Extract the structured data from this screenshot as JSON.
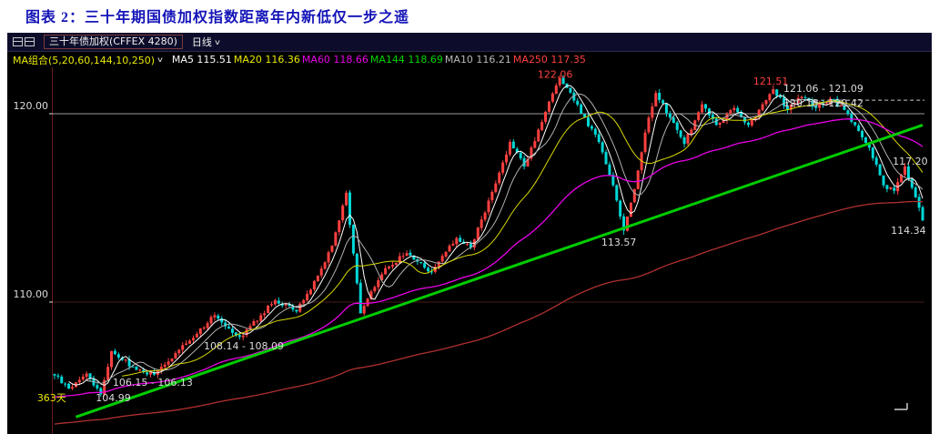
{
  "title": {
    "text": "图表 2：三十年期国债加权指数距离年内新低仅一步之遥"
  },
  "chart_header": {
    "instrument": "三十年债加权(CFFEX 4280)",
    "period": "日线",
    "caret": "∨",
    "ma_group_label": "MA组合(5,20,60,144,10,250)",
    "ma_items": [
      {
        "label": "MA5 115.51",
        "color": "#ffffff"
      },
      {
        "label": "MA20 116.36",
        "color": "#e8e800"
      },
      {
        "label": "MA60 118.66",
        "color": "#e800e8"
      },
      {
        "label": "MA144 118.69",
        "color": "#00d800"
      },
      {
        "label": "MA10 116.21",
        "color": "#b8b8b8"
      },
      {
        "label": "MA250 117.35",
        "color": "#ff4040"
      }
    ]
  },
  "chart_data": {
    "type": "candlestick",
    "title": "三十年债加权(CFFEX 4280) 日线",
    "x_span_label": "363天",
    "y_axis": {
      "range": [
        103.2,
        122.5
      ],
      "labels": [
        {
          "text": "120.00",
          "price": 120.0
        },
        {
          "text": "110.00",
          "price": 110.0
        }
      ]
    },
    "num_candles": 245,
    "anchors": [
      [
        0,
        106.1
      ],
      [
        4,
        105.4
      ],
      [
        9,
        106.2
      ],
      [
        13,
        105.1
      ],
      [
        16,
        107.4
      ],
      [
        23,
        106.4
      ],
      [
        28,
        106.15
      ],
      [
        33,
        107.0
      ],
      [
        37,
        107.8
      ],
      [
        45,
        109.3
      ],
      [
        52,
        108.15
      ],
      [
        58,
        109.3
      ],
      [
        62,
        110.1
      ],
      [
        68,
        109.5
      ],
      [
        74,
        111.4
      ],
      [
        78,
        113.0
      ],
      [
        82,
        115.8
      ],
      [
        86,
        109.4
      ],
      [
        90,
        110.8
      ],
      [
        93,
        111.8
      ],
      [
        99,
        112.6
      ],
      [
        106,
        111.6
      ],
      [
        113,
        113.4
      ],
      [
        117,
        112.9
      ],
      [
        124,
        116.3
      ],
      [
        128,
        118.5
      ],
      [
        132,
        117.2
      ],
      [
        138,
        120.1
      ],
      [
        142,
        121.9
      ],
      [
        146,
        120.7
      ],
      [
        153,
        118.5
      ],
      [
        157,
        116.2
      ],
      [
        160,
        113.8
      ],
      [
        163,
        116.0
      ],
      [
        166,
        119.0
      ],
      [
        169,
        121.1
      ],
      [
        173,
        119.8
      ],
      [
        177,
        118.4
      ],
      [
        182,
        120.5
      ],
      [
        186,
        119.4
      ],
      [
        191,
        120.3
      ],
      [
        195,
        119.4
      ],
      [
        199,
        120.5
      ],
      [
        202,
        121.3
      ],
      [
        206,
        120.2
      ],
      [
        210,
        120.9
      ],
      [
        214,
        120.3
      ],
      [
        218,
        120.8
      ],
      [
        222,
        120.2
      ],
      [
        225,
        119.4
      ],
      [
        229,
        118.2
      ],
      [
        233,
        116.2
      ],
      [
        236,
        115.9
      ],
      [
        239,
        117.2
      ],
      [
        244,
        114.34
      ]
    ],
    "forced_points": [
      {
        "idx": 13,
        "type": "low",
        "price": 104.99
      },
      {
        "idx": 142,
        "type": "high",
        "price": 122.06
      },
      {
        "idx": 160,
        "type": "low",
        "price": 113.57
      },
      {
        "idx": 202,
        "type": "high",
        "price": 121.51
      },
      {
        "idx": 244,
        "type": "close",
        "price": 114.34
      }
    ],
    "moving_averages": [
      {
        "name": "MA5",
        "window": 5,
        "type": "sma",
        "color": "#ffffff",
        "width": 1
      },
      {
        "name": "MA10",
        "window": 10,
        "type": "sma",
        "color": "#b0b0b0",
        "width": 1
      },
      {
        "name": "MA20",
        "window": 20,
        "type": "sma",
        "color": "#d8d800",
        "width": 1
      },
      {
        "name": "MA60",
        "window": 60,
        "type": "ema",
        "alpha": 0.032,
        "seed_offset": -1.2,
        "color": "#e800e8",
        "width": 1.3
      },
      {
        "name": "MA250",
        "window": 250,
        "type": "ema",
        "alpha": 0.009,
        "seed_offset": -2.6,
        "color": "#b03030",
        "width": 1.3
      }
    ],
    "trendline": {
      "from": {
        "idx": 6,
        "price": 103.9
      },
      "to": {
        "idx": 244,
        "price": 119.4
      },
      "color": "#00cc00",
      "width": 3
    },
    "gridlines": [
      {
        "price": 120.0,
        "color": "#9a9a9a",
        "width": 1
      },
      {
        "price": 110.0,
        "color": "#4a1a1a",
        "width": 1
      }
    ],
    "dashed_level": {
      "price": 120.72,
      "from_idx": 213.6,
      "color": "#cccccc",
      "dash": "4 3"
    },
    "annotations": [
      {
        "text": "122.06",
        "idx": 140.7,
        "price": 122.1,
        "color": "#ff4040"
      },
      {
        "text": "121.51",
        "idx": 201.3,
        "price": 121.74,
        "color": "#ff4040"
      },
      {
        "text": "121.06 - 121.09",
        "idx": 216.1,
        "price": 121.35,
        "color": "#dcdcdc"
      },
      {
        "text": "120.18 - 120.42",
        "idx": 216.1,
        "price": 120.58,
        "color": "#dcdcdc"
      },
      {
        "text": "117.20",
        "idx": 240.5,
        "price": 117.49,
        "color": "#dcdcdc"
      },
      {
        "text": "114.34",
        "idx": 240.0,
        "price": 113.82,
        "color": "#dcdcdc"
      },
      {
        "text": "113.57",
        "idx": 158.6,
        "price": 113.19,
        "color": "#dcdcdc"
      },
      {
        "text": "108.14 - 108.09",
        "idx": 53.2,
        "price": 107.68,
        "color": "#dcdcdc"
      },
      {
        "text": "106.15 - 106.13",
        "idx": 27.6,
        "price": 105.76,
        "color": "#dcdcdc"
      },
      {
        "text": "104.99",
        "idx": 16.5,
        "price": 104.93,
        "color": "#dcdcdc"
      },
      {
        "text": "363天",
        "idx": -0.8,
        "price": 104.93,
        "color": "#e8e800"
      }
    ],
    "colors": {
      "up": "#ff4040",
      "down": "#00d8d8",
      "background": "#000000",
      "axis": "#6b1b1b",
      "label": "#dcdcdc"
    }
  }
}
